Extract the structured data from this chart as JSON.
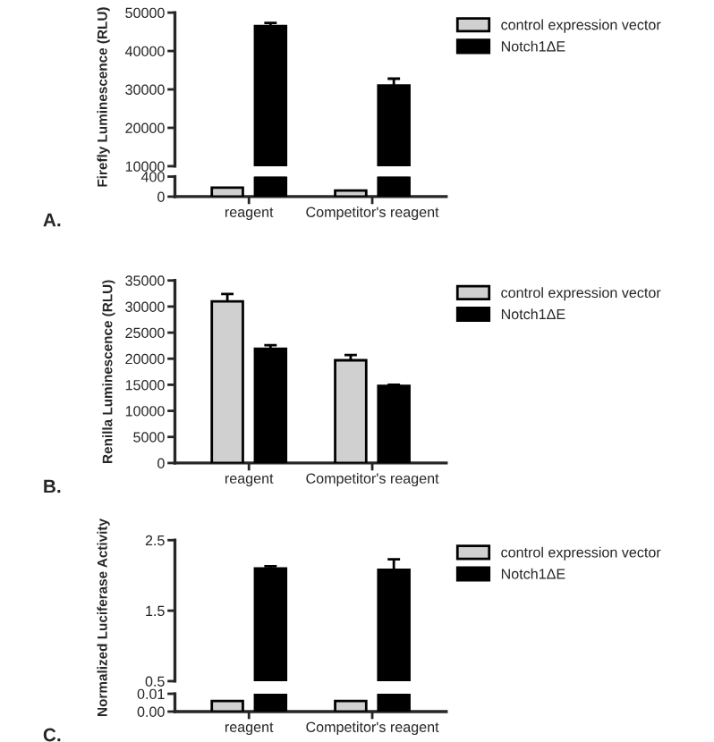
{
  "chart_data": [
    {
      "type": "bar",
      "categories": [
        null,
        null
      ],
      "ylabel": "Firefly Luminescence (RLU)",
      "ylim": [
        10000,
        50000
      ],
      "yticks": [
        10000,
        20000,
        30000,
        40000,
        50000
      ],
      "tick_labels": "y",
      "legend": "top right",
      "series": [
        {
          "name": "control expression vector",
          "color": "#d0d0d0",
          "values": [
            null,
            null
          ]
        },
        {
          "name": "Notch1ΔE",
          "color": "#000000",
          "values": [
            46500,
            31000
          ],
          "errors": [
            800,
            1800
          ]
        }
      ]
    },
    {
      "type": "bar",
      "categories": [
        "reagent",
        "Competitor's reagent"
      ],
      "ylim": [
        0,
        400
      ],
      "yticks": [
        0,
        400
      ],
      "annotations": [
        "A."
      ],
      "series": [
        {
          "color": "#d0d0d0",
          "values": [
            180,
            120
          ]
        },
        {
          "color": "#000000",
          "values": [
            400,
            400
          ]
        }
      ]
    },
    {
      "type": "bar",
      "categories": [
        "reagent",
        "Competitor's reagent"
      ],
      "ylabel": "Renilla Luminescence (RLU)",
      "ylim": [
        0,
        35000
      ],
      "yticks": [
        0,
        5000,
        10000,
        15000,
        20000,
        25000,
        30000,
        35000
      ],
      "legend": "top right",
      "annotations": [
        "B."
      ],
      "series": [
        {
          "name": "control expression vector",
          "color": "#d0d0d0",
          "values": [
            31000,
            19700
          ],
          "errors": [
            1400,
            1000
          ]
        },
        {
          "name": "Notch1ΔE",
          "color": "#000000",
          "values": [
            21900,
            14800
          ],
          "errors": [
            700,
            200
          ]
        }
      ]
    },
    {
      "type": "bar",
      "categories": [
        null,
        null
      ],
      "ylabel": "Normalized Luciferase Activity",
      "ylim": [
        0.5,
        2.5
      ],
      "yticks": [
        0.5,
        1.5,
        2.5
      ],
      "tick_labels": "y",
      "legend": "top right",
      "series": [
        {
          "name": "control expression vector",
          "color": "#d0d0d0",
          "values": [
            null,
            null
          ]
        },
        {
          "name": "Notch1ΔE",
          "color": "#000000",
          "values": [
            2.1,
            2.08
          ],
          "errors": [
            0.03,
            0.15
          ]
        }
      ]
    },
    {
      "type": "bar",
      "categories": [
        "reagent",
        "Competitor's reagent"
      ],
      "ylim": [
        0,
        0.01
      ],
      "yticks": [
        {
          "value": 0,
          "label": "0.00"
        },
        0.01
      ],
      "annotations": [
        "C."
      ],
      "series": [
        {
          "color": "#d0d0d0",
          "values": [
            0.006,
            0.006
          ]
        },
        {
          "color": "#000000",
          "values": [
            0.01,
            0.01
          ]
        }
      ]
    }
  ]
}
